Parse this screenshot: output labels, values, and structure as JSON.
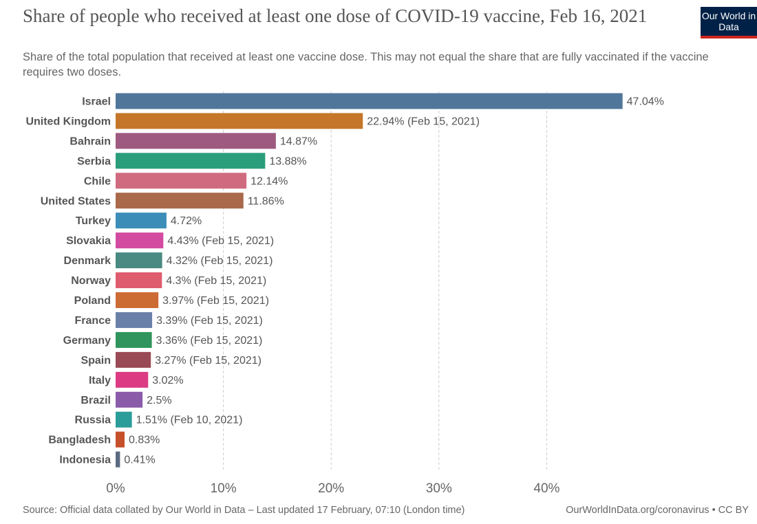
{
  "header": {
    "title": "Share of people who received at least one dose of COVID-19 vaccine, Feb 16, 2021",
    "subtitle": "Share of the total population that received at least one vaccine dose. This may not equal the share that are fully vaccinated if the vaccine requires two doses.",
    "logo": "Our World in Data"
  },
  "footer": {
    "source": "Source: Official data collated by Our World in Data – Last updated 17 February, 07:10 (London time)",
    "license": "OurWorldInData.org/coronavirus • CC BY"
  },
  "chart_data": {
    "type": "bar",
    "orientation": "horizontal",
    "title": "Share of people who received at least one dose of COVID-19 vaccine, Feb 16, 2021",
    "xlim": [
      0,
      47.04
    ],
    "xticks": [
      "0%",
      "10%",
      "20%",
      "30%",
      "40%"
    ],
    "xtick_values": [
      0,
      10,
      20,
      30,
      40
    ],
    "grid": "vertical dashed",
    "categories": [
      "Israel",
      "United Kingdom",
      "Bahrain",
      "Serbia",
      "Chile",
      "United States",
      "Turkey",
      "Slovakia",
      "Denmark",
      "Norway",
      "Poland",
      "France",
      "Germany",
      "Spain",
      "Italy",
      "Brazil",
      "Russia",
      "Bangladesh",
      "Indonesia"
    ],
    "values": [
      47.04,
      22.94,
      14.87,
      13.88,
      12.14,
      11.86,
      4.72,
      4.43,
      4.32,
      4.3,
      3.97,
      3.39,
      3.36,
      3.27,
      3.02,
      2.5,
      1.51,
      0.83,
      0.41
    ],
    "labels": [
      "47.04%",
      "22.94% (Feb 15, 2021)",
      "14.87%",
      "13.88%",
      "12.14%",
      "11.86%",
      "4.72%",
      "4.43% (Feb 15, 2021)",
      "4.32% (Feb 15, 2021)",
      "4.3% (Feb 15, 2021)",
      "3.97% (Feb 15, 2021)",
      "3.39% (Feb 15, 2021)",
      "3.36% (Feb 15, 2021)",
      "3.27% (Feb 15, 2021)",
      "3.02%",
      "2.5%",
      "1.51% (Feb 10, 2021)",
      "0.83%",
      "0.41%"
    ],
    "colors": [
      "#50769a",
      "#c5762a",
      "#9e5a80",
      "#2a9d7b",
      "#d06b7f",
      "#a9694a",
      "#3c8db8",
      "#d34ba0",
      "#4a8a82",
      "#df5b6e",
      "#cd6b35",
      "#6a7fa8",
      "#2f955c",
      "#9a4a55",
      "#dc3a83",
      "#8a5ba8",
      "#2a9d9a",
      "#c5502a",
      "#5a6a82"
    ]
  }
}
